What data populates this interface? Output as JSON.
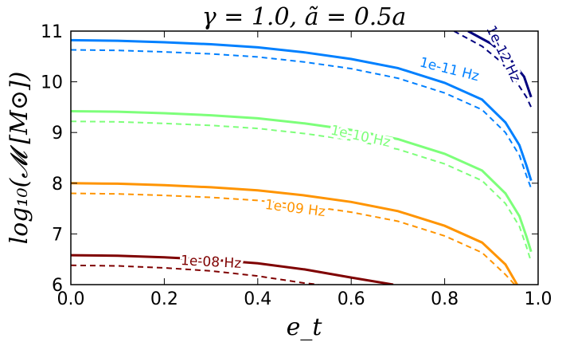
{
  "chart_data": {
    "type": "line",
    "title": "γ = 1.0, ã = 0.5a",
    "xlabel": "e_t",
    "ylabel": "log₁₀(𝓜 [M⊙])",
    "xlim": [
      0.0,
      1.0
    ],
    "ylim": [
      6.0,
      11.0
    ],
    "xticks": [
      "0.0",
      "0.2",
      "0.4",
      "0.6",
      "0.8",
      "1.0"
    ],
    "yticks": [
      "6",
      "7",
      "8",
      "9",
      "10",
      "11"
    ],
    "grid": false,
    "series": [
      {
        "name": "1e-12 Hz",
        "color": "#00007f",
        "label": "1e-12 Hz",
        "solid": [
          [
            0.85,
            11.0
          ],
          [
            0.9,
            10.75
          ],
          [
            0.94,
            10.45
          ],
          [
            0.97,
            10.1
          ],
          [
            0.985,
            9.7
          ]
        ],
        "dashed": [
          [
            0.82,
            11.0
          ],
          [
            0.88,
            10.7
          ],
          [
            0.92,
            10.4
          ],
          [
            0.95,
            10.05
          ],
          [
            0.975,
            9.7
          ],
          [
            0.985,
            9.5
          ]
        ]
      },
      {
        "name": "1e-11 Hz",
        "color": "#0080ff",
        "label": "1e-11 Hz",
        "solid": [
          [
            0.0,
            10.82
          ],
          [
            0.1,
            10.81
          ],
          [
            0.2,
            10.78
          ],
          [
            0.3,
            10.74
          ],
          [
            0.4,
            10.68
          ],
          [
            0.5,
            10.58
          ],
          [
            0.6,
            10.45
          ],
          [
            0.7,
            10.27
          ],
          [
            0.8,
            9.98
          ],
          [
            0.88,
            9.65
          ],
          [
            0.93,
            9.2
          ],
          [
            0.96,
            8.75
          ],
          [
            0.975,
            8.35
          ],
          [
            0.985,
            8.05
          ]
        ],
        "dashed": [
          [
            0.0,
            10.63
          ],
          [
            0.1,
            10.62
          ],
          [
            0.2,
            10.59
          ],
          [
            0.3,
            10.55
          ],
          [
            0.4,
            10.49
          ],
          [
            0.5,
            10.39
          ],
          [
            0.6,
            10.26
          ],
          [
            0.7,
            10.07
          ],
          [
            0.8,
            9.78
          ],
          [
            0.88,
            9.45
          ],
          [
            0.93,
            9.0
          ],
          [
            0.96,
            8.55
          ],
          [
            0.975,
            8.15
          ],
          [
            0.985,
            7.9
          ]
        ]
      },
      {
        "name": "1e-10 Hz",
        "color": "#7dff7a",
        "label": "1e-10 Hz",
        "solid": [
          [
            0.0,
            9.42
          ],
          [
            0.1,
            9.41
          ],
          [
            0.2,
            9.38
          ],
          [
            0.3,
            9.34
          ],
          [
            0.4,
            9.28
          ],
          [
            0.5,
            9.18
          ],
          [
            0.6,
            9.05
          ],
          [
            0.7,
            8.87
          ],
          [
            0.8,
            8.58
          ],
          [
            0.88,
            8.25
          ],
          [
            0.93,
            7.8
          ],
          [
            0.96,
            7.35
          ],
          [
            0.975,
            6.95
          ],
          [
            0.985,
            6.65
          ]
        ],
        "dashed": [
          [
            0.0,
            9.22
          ],
          [
            0.1,
            9.21
          ],
          [
            0.2,
            9.18
          ],
          [
            0.3,
            9.14
          ],
          [
            0.4,
            9.08
          ],
          [
            0.5,
            8.98
          ],
          [
            0.6,
            8.85
          ],
          [
            0.7,
            8.67
          ],
          [
            0.8,
            8.38
          ],
          [
            0.88,
            8.05
          ],
          [
            0.93,
            7.6
          ],
          [
            0.96,
            7.15
          ],
          [
            0.975,
            6.75
          ],
          [
            0.985,
            6.45
          ]
        ]
      },
      {
        "name": "1e-09 Hz",
        "color": "#ff9400",
        "label": "1e-09 Hz",
        "solid": [
          [
            0.0,
            8.0
          ],
          [
            0.1,
            7.99
          ],
          [
            0.2,
            7.96
          ],
          [
            0.3,
            7.92
          ],
          [
            0.4,
            7.86
          ],
          [
            0.5,
            7.76
          ],
          [
            0.6,
            7.63
          ],
          [
            0.7,
            7.45
          ],
          [
            0.8,
            7.16
          ],
          [
            0.88,
            6.83
          ],
          [
            0.93,
            6.4
          ],
          [
            0.955,
            6.0
          ]
        ],
        "dashed": [
          [
            0.0,
            7.8
          ],
          [
            0.1,
            7.79
          ],
          [
            0.2,
            7.76
          ],
          [
            0.3,
            7.72
          ],
          [
            0.4,
            7.66
          ],
          [
            0.5,
            7.56
          ],
          [
            0.6,
            7.43
          ],
          [
            0.7,
            7.25
          ],
          [
            0.8,
            6.96
          ],
          [
            0.88,
            6.63
          ],
          [
            0.93,
            6.2
          ],
          [
            0.95,
            6.0
          ]
        ]
      },
      {
        "name": "1e-08 Hz",
        "color": "#7f0000",
        "label": "1e-08 Hz",
        "solid": [
          [
            0.0,
            6.58
          ],
          [
            0.1,
            6.57
          ],
          [
            0.2,
            6.54
          ],
          [
            0.3,
            6.49
          ],
          [
            0.4,
            6.42
          ],
          [
            0.5,
            6.3
          ],
          [
            0.6,
            6.14
          ],
          [
            0.69,
            6.0
          ]
        ],
        "dashed": [
          [
            0.0,
            6.38
          ],
          [
            0.1,
            6.37
          ],
          [
            0.2,
            6.33
          ],
          [
            0.3,
            6.27
          ],
          [
            0.4,
            6.17
          ],
          [
            0.5,
            6.03
          ],
          [
            0.53,
            6.0
          ]
        ]
      }
    ]
  }
}
